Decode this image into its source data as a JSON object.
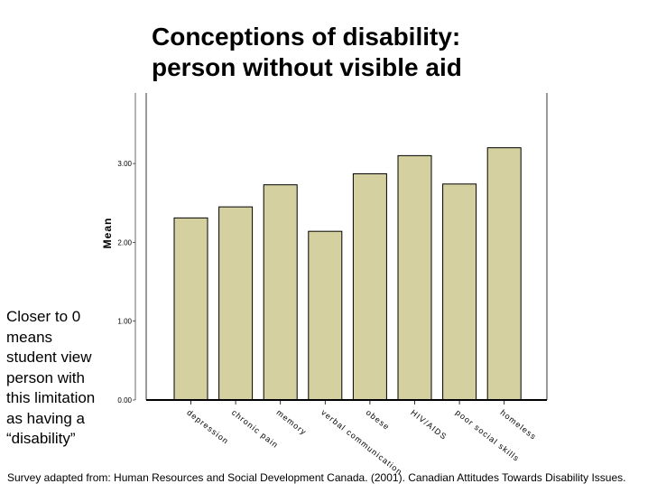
{
  "title_line1": "Conceptions of disability:",
  "title_line2": "person without visible aid",
  "side_note": "Closer to 0 means student view person with this limitation as having a “disability”",
  "footer": "Survey adapted from: Human Resources and Social Development Canada.  (2001).  Canadian Attitudes Towards Disability Issues.",
  "colors": {
    "bar_fill": "#D4D0A0",
    "bar_stroke": "#000000",
    "axis": "#000000"
  },
  "chart_data": {
    "type": "bar",
    "title": "Conceptions of disability: person without visible aid",
    "xlabel": "",
    "ylabel": "Mean",
    "categories": [
      "depression",
      "chronic pain",
      "memory",
      "verbal communication",
      "obese",
      "HIV/AIDS",
      "poor social skills",
      "homeless"
    ],
    "values": [
      2.31,
      2.45,
      2.73,
      2.14,
      2.87,
      3.1,
      2.74,
      3.2
    ],
    "ylim": [
      0,
      3.85
    ],
    "yticks": [
      0,
      1,
      2,
      3
    ],
    "ytick_labels": [
      "0.00",
      "1.00",
      "2.00",
      "3.00"
    ],
    "grid": false
  }
}
